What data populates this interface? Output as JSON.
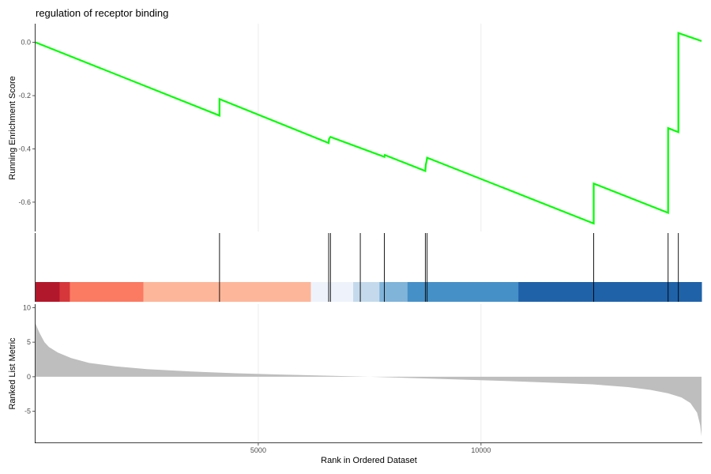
{
  "chart_data": {
    "type": "line",
    "title": "regulation of receptor binding",
    "xlabel": "Rank in Ordered Dataset",
    "x_ticks": [
      5000,
      10000
    ],
    "xlim": [
      0,
      14950
    ],
    "es_panel": {
      "ylabel": "Running Enrichment Score",
      "ylim": [
        -0.71,
        0.07
      ],
      "y_ticks": [
        0.0,
        -0.2,
        -0.4,
        -0.6
      ],
      "line_color": "#00ff00",
      "points": [
        [
          0,
          0.0
        ],
        [
          4130,
          -0.275
        ],
        [
          4130,
          -0.213
        ],
        [
          6580,
          -0.378
        ],
        [
          6590,
          -0.362
        ],
        [
          6620,
          -0.355
        ],
        [
          7830,
          -0.43
        ],
        [
          7830,
          -0.428
        ],
        [
          7840,
          -0.423
        ],
        [
          8750,
          -0.483
        ],
        [
          8760,
          -0.46
        ],
        [
          8780,
          -0.444
        ],
        [
          8790,
          -0.433
        ],
        [
          12530,
          -0.68
        ],
        [
          12530,
          -0.53
        ],
        [
          14200,
          -0.64
        ],
        [
          14200,
          -0.322
        ],
        [
          14430,
          -0.337
        ],
        [
          14430,
          0.035
        ],
        [
          14950,
          0.005
        ]
      ]
    },
    "hits": [
      4130,
      6580,
      6620,
      7290,
      7830,
      8750,
      8790,
      12530,
      14200,
      14430
    ],
    "hit_color": "#000000",
    "color_bar": [
      {
        "from": 0,
        "to": 540,
        "color": "#b2182b"
      },
      {
        "from": 540,
        "to": 770,
        "color": "#d6373a"
      },
      {
        "from": 770,
        "to": 2420,
        "color": "#fb7a62"
      },
      {
        "from": 2420,
        "to": 6180,
        "color": "#fdb69a"
      },
      {
        "from": 6180,
        "to": 7130,
        "color": "#eef3fb"
      },
      {
        "from": 7130,
        "to": 7720,
        "color": "#c4daec"
      },
      {
        "from": 7720,
        "to": 8350,
        "color": "#80b4d9"
      },
      {
        "from": 8350,
        "to": 10840,
        "color": "#4690c8"
      },
      {
        "from": 10840,
        "to": 14950,
        "color": "#1f62a8"
      }
    ],
    "ranked_panel": {
      "ylabel": "Ranked List Metric",
      "ylim": [
        -9.5,
        10.5
      ],
      "y_ticks": [
        10,
        5,
        0,
        -5
      ],
      "fill_color": "#bebebe",
      "curve": [
        [
          0,
          7.7
        ],
        [
          50,
          6.9
        ],
        [
          100,
          6.2
        ],
        [
          200,
          5.0
        ],
        [
          300,
          4.3
        ],
        [
          500,
          3.5
        ],
        [
          800,
          2.7
        ],
        [
          1200,
          2.0
        ],
        [
          1800,
          1.5
        ],
        [
          2500,
          1.1
        ],
        [
          3500,
          0.75
        ],
        [
          4500,
          0.5
        ],
        [
          5500,
          0.32
        ],
        [
          6500,
          0.15
        ],
        [
          7500,
          0.0
        ],
        [
          8500,
          -0.2
        ],
        [
          9500,
          -0.4
        ],
        [
          10500,
          -0.6
        ],
        [
          11500,
          -0.85
        ],
        [
          12500,
          -1.1
        ],
        [
          13300,
          -1.5
        ],
        [
          13800,
          -1.9
        ],
        [
          14200,
          -2.4
        ],
        [
          14500,
          -3.0
        ],
        [
          14700,
          -3.8
        ],
        [
          14850,
          -5.2
        ],
        [
          14920,
          -7.0
        ],
        [
          14950,
          -8.6
        ]
      ]
    }
  }
}
